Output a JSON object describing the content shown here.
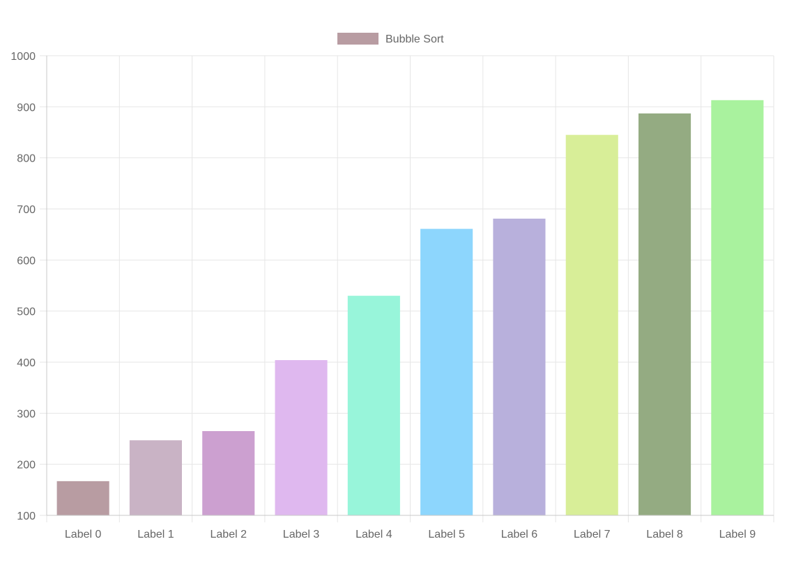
{
  "chart_data": {
    "type": "bar",
    "title": "",
    "xlabel": "",
    "ylabel": "",
    "categories": [
      "Label 0",
      "Label 1",
      "Label 2",
      "Label 3",
      "Label 4",
      "Label 5",
      "Label 6",
      "Label 7",
      "Label 8",
      "Label 9"
    ],
    "series": [
      {
        "name": "Bubble Sort",
        "values": [
          167,
          247,
          265,
          404,
          530,
          661,
          681,
          845,
          887,
          913
        ],
        "colors": [
          "#b89ca2",
          "#c9b3c5",
          "#cca0d0",
          "#dfb8ef",
          "#98f5da",
          "#8dd6fd",
          "#b8b0dc",
          "#d8ee98",
          "#94ab82",
          "#a9f29e"
        ]
      }
    ],
    "ylim": [
      100,
      1000
    ],
    "yticks": [
      100,
      200,
      300,
      400,
      500,
      600,
      700,
      800,
      900,
      1000
    ],
    "grid": true,
    "legend": {
      "position": "top-center",
      "swatch_color": "#b89ca2"
    }
  }
}
